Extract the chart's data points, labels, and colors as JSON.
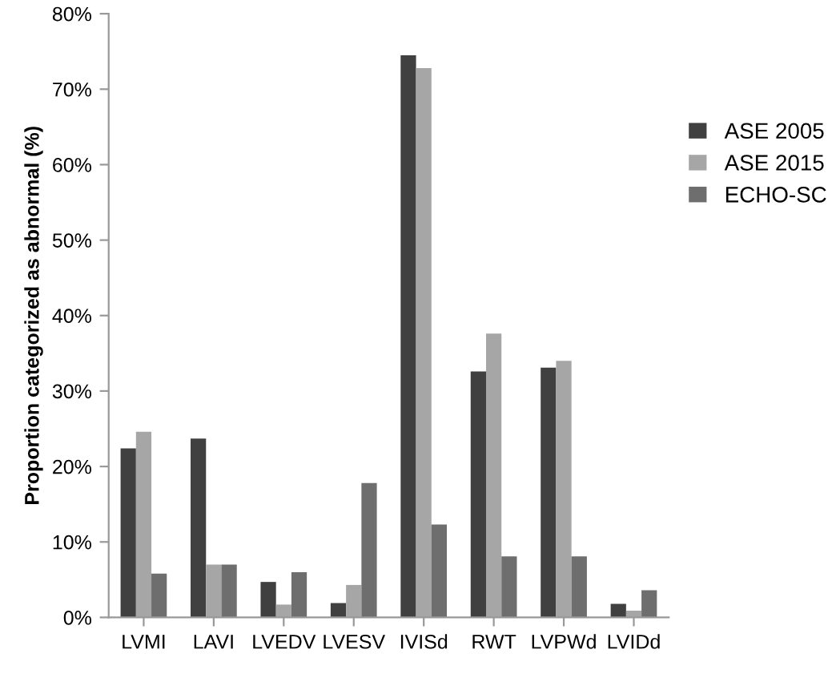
{
  "chart_data": {
    "type": "bar",
    "ylabel": "Proportion categorized as abnormal (%)",
    "categories": [
      "LVMI",
      "LAVI",
      "LVEDV",
      "LVESV",
      "IVISd",
      "RWT",
      "LVPWd",
      "LVIDd"
    ],
    "series": [
      {
        "name": "ASE 2005",
        "color": "#404040",
        "values": [
          22.4,
          23.7,
          4.7,
          1.9,
          74.5,
          32.6,
          33.1,
          1.8
        ]
      },
      {
        "name": "ASE 2015",
        "color": "#a6a6a6",
        "values": [
          24.6,
          7.0,
          1.7,
          4.3,
          72.8,
          37.6,
          34.0,
          0.9
        ]
      },
      {
        "name": "ECHO-SC",
        "color": "#6e6e6e",
        "values": [
          5.8,
          7.0,
          6.0,
          17.8,
          12.3,
          8.1,
          8.1,
          3.6
        ]
      }
    ],
    "ylim": [
      0,
      80
    ],
    "yticks": [
      {
        "value": 0,
        "label": "0%"
      },
      {
        "value": 10,
        "label": "10%"
      },
      {
        "value": 20,
        "label": "20%"
      },
      {
        "value": 30,
        "label": "30%"
      },
      {
        "value": 40,
        "label": "40%"
      },
      {
        "value": 50,
        "label": "50%"
      },
      {
        "value": 60,
        "label": "60%"
      },
      {
        "value": 70,
        "label": "70%"
      },
      {
        "value": 80,
        "label": "80%"
      }
    ],
    "grid": false,
    "legend": "right"
  }
}
